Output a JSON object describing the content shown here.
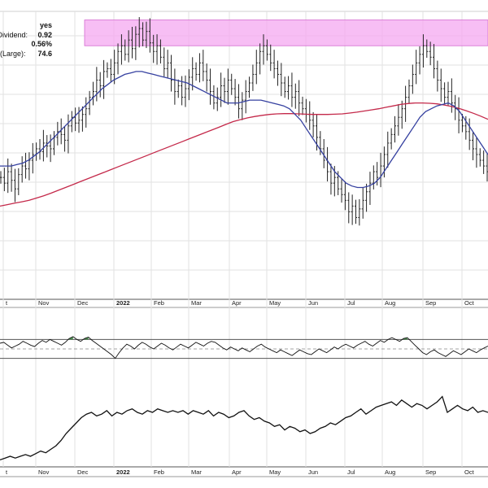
{
  "info_box": [
    {
      "label": "s:",
      "value": "yes"
    },
    {
      "label": "l Dividend:",
      "value": "0.92"
    },
    {
      "label": "",
      "value": "0.56%"
    },
    {
      "label": "(Large):",
      "value": "74.6"
    }
  ],
  "colors": {
    "ma_short": "#3540a0",
    "ma_long": "#c4294a",
    "resistance_band": "#f4a8f0",
    "overbought_fill": "#2e7d32",
    "price_bars": "#222222",
    "grid": "#e2e2e2"
  },
  "chart_data": {
    "type": "line",
    "title": "",
    "x_axis_labels": [
      "t",
      "Nov",
      "Dec",
      "2022",
      "Feb",
      "Mar",
      "Apr",
      "May",
      "Jun",
      "Jul",
      "Aug",
      "Sep",
      "Oct"
    ],
    "price_panel": {
      "y_range": [
        0,
        100
      ],
      "resistance_band": {
        "y_low": 88,
        "y_high": 97,
        "x_start": "Dec",
        "x_end": "end"
      },
      "closes": [
        42,
        40,
        44,
        41,
        38,
        43,
        46,
        45,
        48,
        50,
        52,
        51,
        54,
        53,
        52,
        56,
        58,
        57,
        55,
        60,
        63,
        61,
        62,
        64,
        66,
        70,
        72,
        76,
        74,
        79,
        80,
        78,
        82,
        86,
        88,
        85,
        90,
        87,
        92,
        94,
        90,
        93,
        89,
        86,
        88,
        84,
        80,
        82,
        76,
        72,
        74,
        70,
        73,
        77,
        80,
        78,
        82,
        79,
        76,
        72,
        68,
        70,
        74,
        72,
        76,
        73,
        70,
        66,
        69,
        72,
        75,
        78,
        82,
        86,
        88,
        85,
        82,
        80,
        78,
        75,
        72,
        74,
        70,
        72,
        68,
        66,
        64,
        62,
        60,
        56,
        52,
        48,
        44,
        40,
        42,
        38,
        36,
        34,
        30,
        32,
        28,
        31,
        34,
        37,
        40,
        44,
        42,
        46,
        50,
        54,
        57,
        60,
        63,
        66,
        70,
        74,
        78,
        82,
        85,
        88,
        86,
        84,
        80,
        76,
        73,
        70,
        72,
        68,
        66,
        62,
        60,
        58,
        55,
        52,
        50,
        48,
        46,
        44
      ],
      "ma_short": [
        46,
        46,
        46,
        46.5,
        47,
        48,
        49.5,
        51,
        53,
        55,
        57,
        59,
        61,
        63,
        65,
        67,
        69,
        71,
        73,
        74.5,
        76,
        77,
        78,
        78.5,
        79,
        79,
        78.5,
        78,
        77.5,
        77,
        76.5,
        76,
        75.5,
        75,
        74,
        73,
        72,
        71,
        70,
        69,
        68,
        68,
        68,
        68.5,
        69,
        69,
        69,
        68.5,
        68,
        67.5,
        67,
        66,
        64,
        62,
        59,
        56,
        53,
        50,
        47,
        44,
        42,
        40,
        39,
        38.5,
        38.5,
        39,
        40,
        42,
        45,
        48,
        51,
        54,
        57,
        60,
        63,
        65,
        66,
        67,
        67.5,
        68,
        67,
        65,
        62,
        59,
        56,
        53,
        50
      ],
      "ma_long": [
        32,
        32.5,
        33,
        33.5,
        34,
        34.8,
        35.6,
        36.5,
        37.5,
        38.5,
        39.5,
        40.5,
        41.5,
        42.5,
        43.5,
        44.5,
        45.5,
        46.5,
        47.5,
        48.5,
        49.5,
        50.5,
        51.5,
        52.5,
        53.5,
        54.5,
        55.5,
        56.5,
        57.5,
        58.5,
        59.5,
        60.5,
        61.5,
        62.2,
        62.8,
        63.3,
        63.7,
        64,
        64.2,
        64.3,
        64.3,
        64.2,
        64.1,
        64,
        64,
        64,
        64.1,
        64.2,
        64.5,
        64.8,
        65.2,
        65.6,
        66,
        66.5,
        67,
        67.5,
        67.8,
        68,
        68,
        67.9,
        67.7,
        67.3,
        66.8,
        66.1,
        65.3,
        64.4,
        63.4,
        62.3
      ]
    },
    "rsi_panel": {
      "y_range": [
        0,
        100
      ],
      "upper_line": 70,
      "lower_line": 30,
      "mid_line": 50,
      "values": [
        62,
        64,
        58,
        52,
        56,
        60,
        66,
        62,
        58,
        55,
        62,
        68,
        64,
        70,
        66,
        62,
        58,
        64,
        72,
        76,
        70,
        66,
        72,
        75,
        68,
        62,
        56,
        50,
        44,
        38,
        30,
        42,
        52,
        60,
        56,
        50,
        58,
        64,
        60,
        54,
        50,
        56,
        62,
        58,
        52,
        48,
        54,
        60,
        56,
        52,
        58,
        64,
        60,
        56,
        62,
        66,
        64,
        58,
        52,
        48,
        54,
        50,
        46,
        52,
        48,
        44,
        50,
        56,
        60,
        54,
        50,
        46,
        42,
        48,
        44,
        40,
        36,
        42,
        48,
        44,
        40,
        38,
        44,
        50,
        46,
        42,
        48,
        54,
        50,
        56,
        60,
        56,
        52,
        58,
        62,
        66,
        60,
        56,
        62,
        68,
        64,
        70,
        74,
        70,
        66,
        72,
        74,
        66,
        58,
        50,
        42,
        38,
        44,
        48,
        42,
        38,
        34,
        40,
        46,
        42,
        38,
        44,
        50,
        46,
        42,
        48,
        52,
        56
      ]
    },
    "relative_panel": {
      "y_range": [
        0,
        100
      ],
      "values": [
        8,
        10,
        12,
        10,
        12,
        14,
        12,
        15,
        18,
        16,
        20,
        24,
        30,
        38,
        44,
        50,
        56,
        60,
        62,
        58,
        60,
        64,
        58,
        62,
        60,
        64,
        66,
        62,
        60,
        64,
        62,
        66,
        64,
        62,
        64,
        62,
        64,
        60,
        64,
        62,
        60,
        64,
        58,
        62,
        60,
        56,
        58,
        62,
        64,
        58,
        54,
        56,
        52,
        50,
        46,
        48,
        42,
        46,
        44,
        40,
        42,
        38,
        40,
        44,
        46,
        50,
        48,
        52,
        56,
        58,
        62,
        66,
        60,
        64,
        68,
        70,
        72,
        74,
        70,
        76,
        72,
        68,
        72,
        70,
        66,
        70,
        74,
        80,
        62,
        66,
        70,
        66,
        64,
        68,
        62,
        64,
        62
      ]
    }
  }
}
